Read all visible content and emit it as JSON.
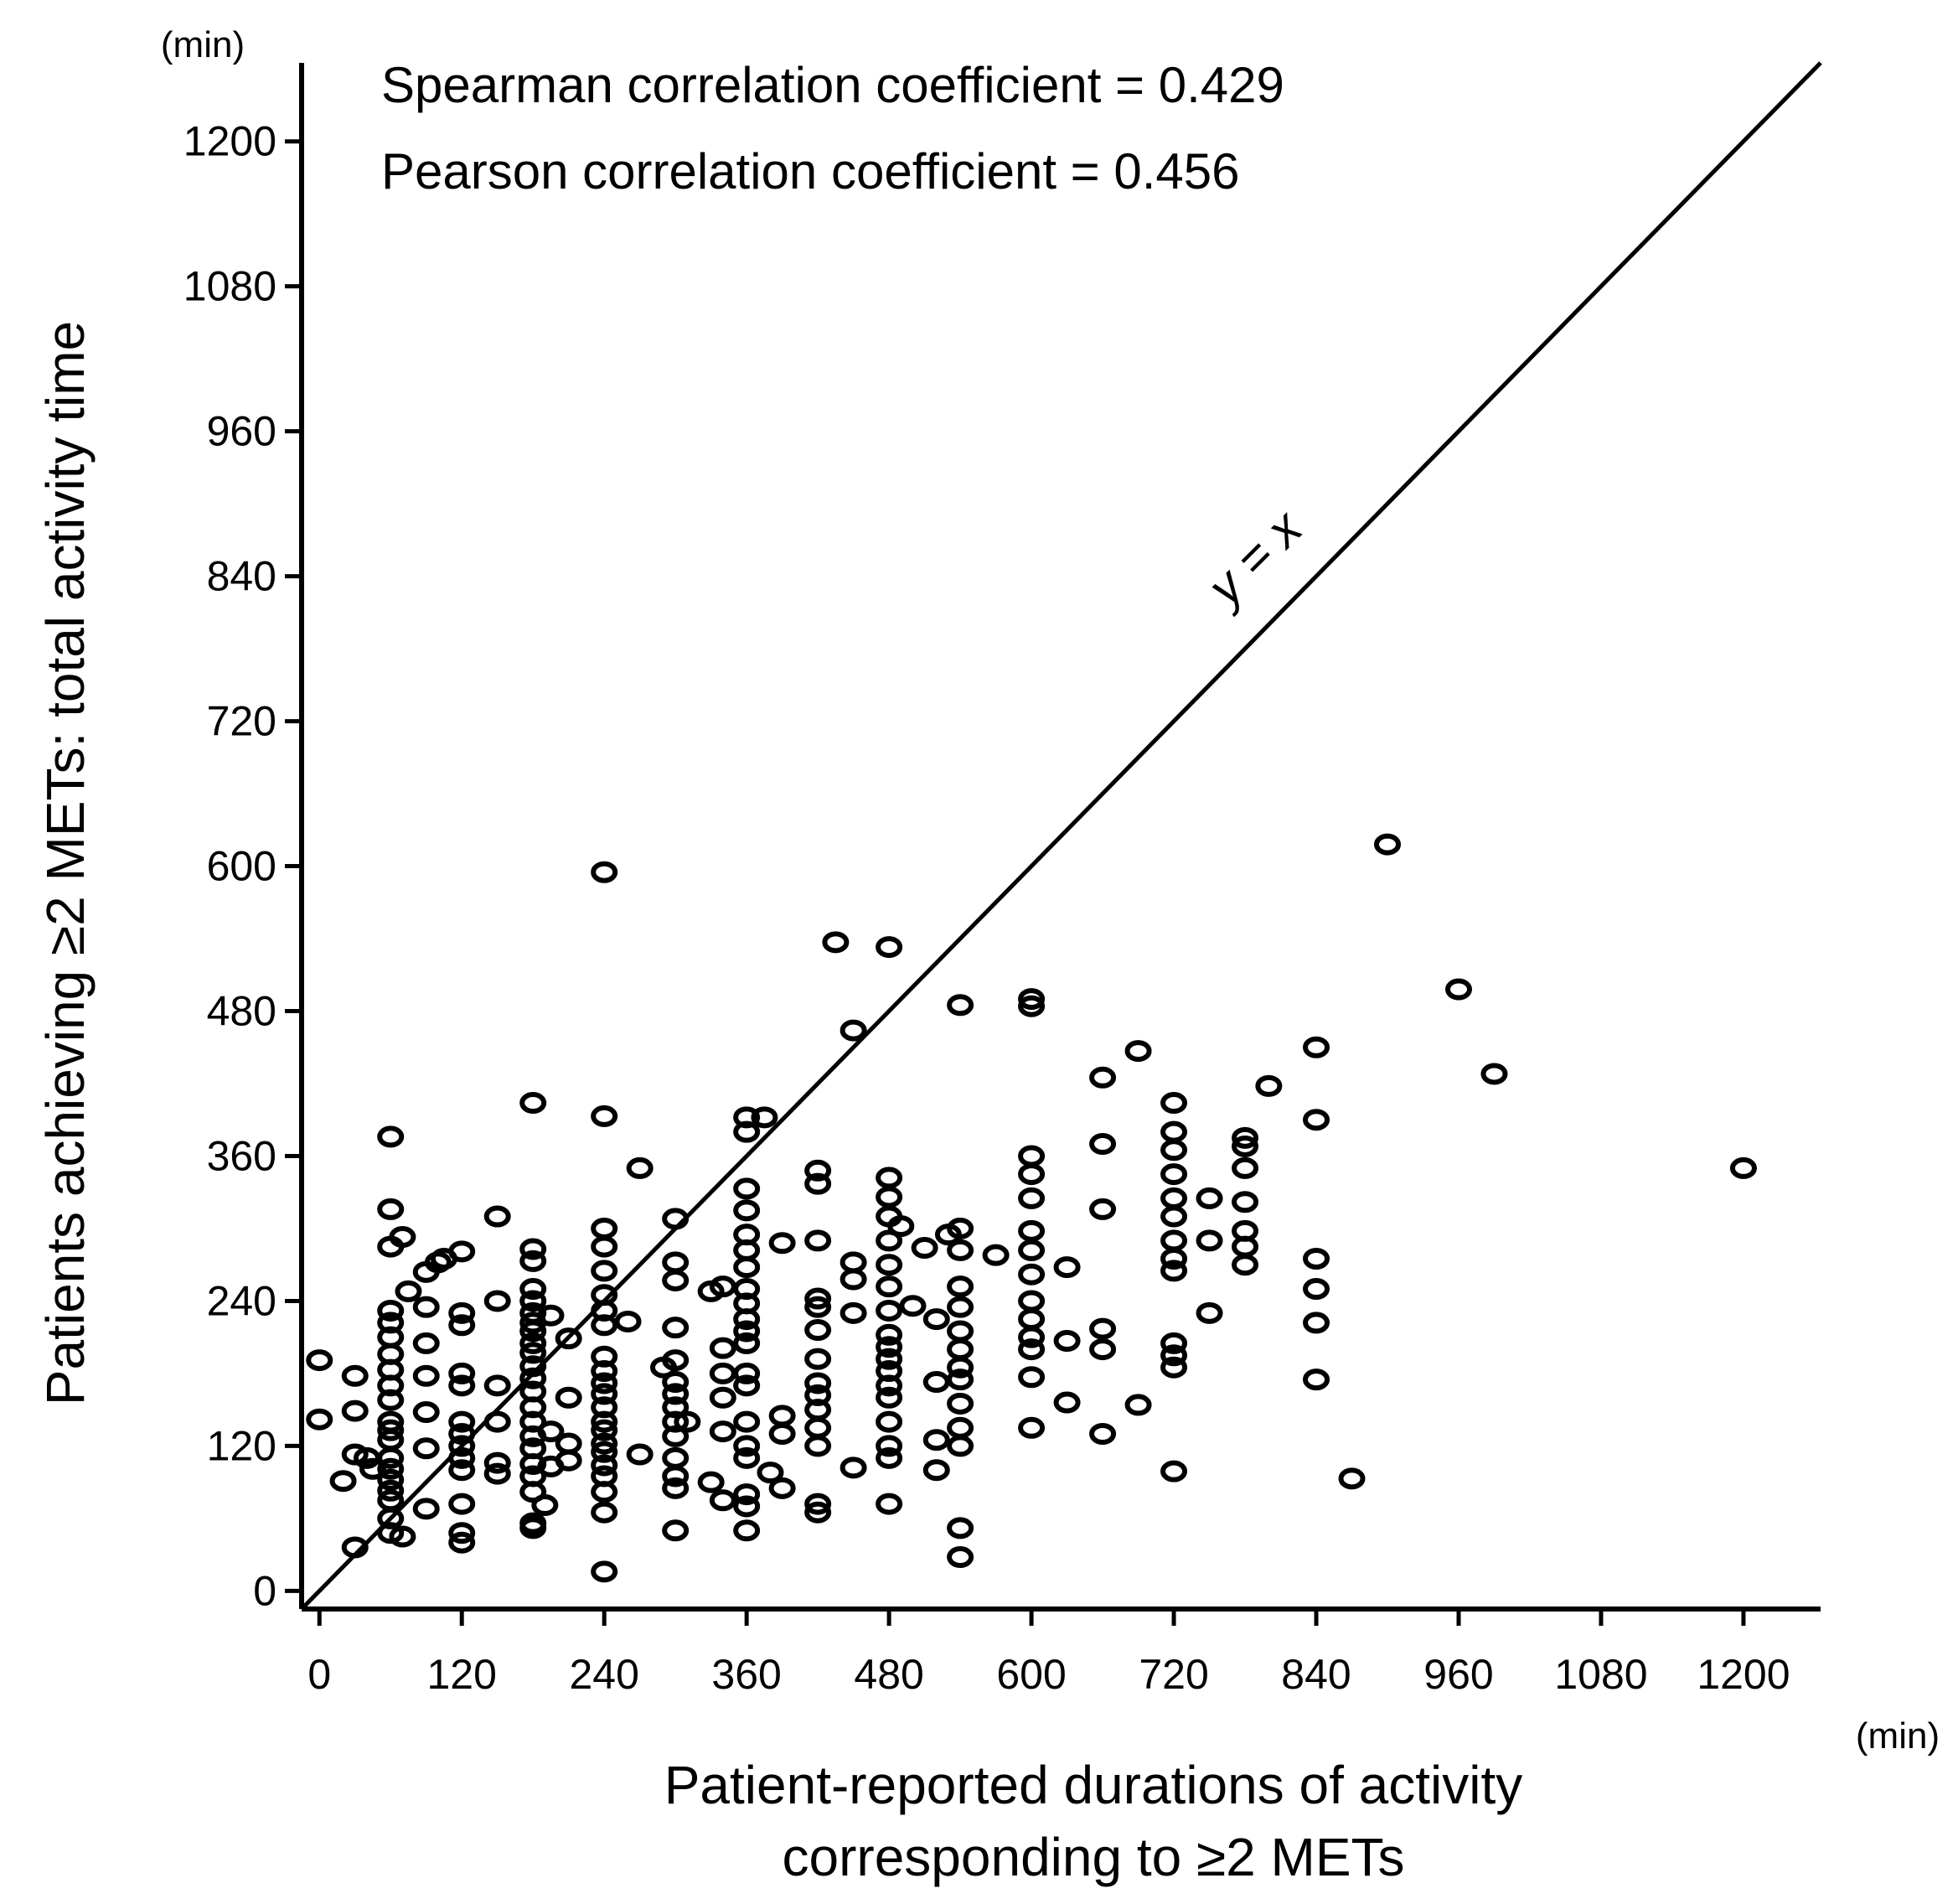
{
  "chart_data": {
    "type": "scatter",
    "xlabel": [
      "Patient-reported  durations of activity",
      "corresponding  to ≥2 METs"
    ],
    "ylabel": "Patients achieving ≥2 METs:  total activity time",
    "x_unit": "(min)",
    "y_unit": "(min)",
    "xlim": [
      -15,
      1265
    ],
    "ylim": [
      -15,
      1265
    ],
    "xticks": [
      0,
      120,
      240,
      360,
      480,
      600,
      720,
      840,
      960,
      1080,
      1200
    ],
    "yticks": [
      0,
      120,
      240,
      360,
      480,
      600,
      720,
      840,
      960,
      1080,
      1200
    ],
    "grid": false,
    "annotations": [
      "Spearman correlation coefficient = 0.429",
      "Pearson correlation coefficient = 0.456"
    ],
    "reference_line": {
      "label": "y = x",
      "slope": 1,
      "intercept": 0
    },
    "series": [
      {
        "points": [
          [
            0,
            191
          ],
          [
            0,
            142
          ],
          [
            20,
            91
          ],
          [
            30,
            36
          ],
          [
            30,
            113
          ],
          [
            30,
            149
          ],
          [
            30,
            178
          ],
          [
            40,
            110
          ],
          [
            45,
            101
          ],
          [
            60,
            48
          ],
          [
            60,
            60
          ],
          [
            60,
            75
          ],
          [
            60,
            83
          ],
          [
            60,
            92
          ],
          [
            60,
            101
          ],
          [
            60,
            110
          ],
          [
            60,
            125
          ],
          [
            60,
            133
          ],
          [
            60,
            140
          ],
          [
            60,
            158
          ],
          [
            60,
            170
          ],
          [
            60,
            183
          ],
          [
            60,
            196
          ],
          [
            60,
            210
          ],
          [
            60,
            222
          ],
          [
            60,
            232
          ],
          [
            60,
            285
          ],
          [
            60,
            316
          ],
          [
            60,
            376
          ],
          [
            70,
            45
          ],
          [
            70,
            293
          ],
          [
            75,
            248
          ],
          [
            90,
            68
          ],
          [
            90,
            118
          ],
          [
            90,
            148
          ],
          [
            90,
            178
          ],
          [
            90,
            205
          ],
          [
            90,
            235
          ],
          [
            90,
            264
          ],
          [
            100,
            272
          ],
          [
            105,
            275
          ],
          [
            120,
            40
          ],
          [
            120,
            48
          ],
          [
            120,
            72
          ],
          [
            120,
            100
          ],
          [
            120,
            110
          ],
          [
            120,
            120
          ],
          [
            120,
            130
          ],
          [
            120,
            140
          ],
          [
            120,
            170
          ],
          [
            120,
            180
          ],
          [
            120,
            220
          ],
          [
            120,
            230
          ],
          [
            120,
            281
          ],
          [
            150,
            97
          ],
          [
            150,
            106
          ],
          [
            150,
            140
          ],
          [
            150,
            170
          ],
          [
            150,
            240
          ],
          [
            150,
            310
          ],
          [
            180,
            52
          ],
          [
            180,
            56
          ],
          [
            180,
            82
          ],
          [
            180,
            95
          ],
          [
            180,
            105
          ],
          [
            180,
            118
          ],
          [
            180,
            128
          ],
          [
            180,
            140
          ],
          [
            180,
            152
          ],
          [
            180,
            165
          ],
          [
            180,
            176
          ],
          [
            180,
            186
          ],
          [
            180,
            197
          ],
          [
            180,
            205
          ],
          [
            180,
            215
          ],
          [
            180,
            222
          ],
          [
            180,
            230
          ],
          [
            180,
            240
          ],
          [
            180,
            250
          ],
          [
            180,
            273
          ],
          [
            180,
            283
          ],
          [
            180,
            404
          ],
          [
            190,
            71
          ],
          [
            195,
            103
          ],
          [
            195,
            132
          ],
          [
            195,
            228
          ],
          [
            210,
            108
          ],
          [
            210,
            122
          ],
          [
            210,
            160
          ],
          [
            210,
            209
          ],
          [
            240,
            16
          ],
          [
            240,
            65
          ],
          [
            240,
            82
          ],
          [
            240,
            95
          ],
          [
            240,
            104
          ],
          [
            240,
            115
          ],
          [
            240,
            122
          ],
          [
            240,
            133
          ],
          [
            240,
            140
          ],
          [
            240,
            152
          ],
          [
            240,
            163
          ],
          [
            240,
            172
          ],
          [
            240,
            182
          ],
          [
            240,
            194
          ],
          [
            240,
            220
          ],
          [
            240,
            232
          ],
          [
            240,
            245
          ],
          [
            240,
            265
          ],
          [
            240,
            285
          ],
          [
            240,
            300
          ],
          [
            240,
            393
          ],
          [
            240,
            595
          ],
          [
            260,
            223
          ],
          [
            270,
            113
          ],
          [
            270,
            350
          ],
          [
            290,
            185
          ],
          [
            300,
            50
          ],
          [
            300,
            85
          ],
          [
            300,
            95
          ],
          [
            300,
            110
          ],
          [
            300,
            128
          ],
          [
            300,
            140
          ],
          [
            300,
            152
          ],
          [
            300,
            163
          ],
          [
            300,
            173
          ],
          [
            300,
            191
          ],
          [
            300,
            218
          ],
          [
            300,
            257
          ],
          [
            300,
            272
          ],
          [
            300,
            308
          ],
          [
            310,
            140
          ],
          [
            330,
            248
          ],
          [
            330,
            90
          ],
          [
            340,
            75
          ],
          [
            340,
            132
          ],
          [
            340,
            160
          ],
          [
            340,
            180
          ],
          [
            340,
            201
          ],
          [
            340,
            252
          ],
          [
            360,
            50
          ],
          [
            360,
            70
          ],
          [
            360,
            80
          ],
          [
            360,
            110
          ],
          [
            360,
            120
          ],
          [
            360,
            140
          ],
          [
            360,
            170
          ],
          [
            360,
            180
          ],
          [
            360,
            205
          ],
          [
            360,
            215
          ],
          [
            360,
            225
          ],
          [
            360,
            238
          ],
          [
            360,
            250
          ],
          [
            360,
            268
          ],
          [
            360,
            282
          ],
          [
            360,
            295
          ],
          [
            360,
            315
          ],
          [
            360,
            333
          ],
          [
            360,
            380
          ],
          [
            360,
            392
          ],
          [
            375,
            392
          ],
          [
            380,
            98
          ],
          [
            390,
            85
          ],
          [
            390,
            130
          ],
          [
            390,
            145
          ],
          [
            390,
            288
          ],
          [
            420,
            65
          ],
          [
            420,
            72
          ],
          [
            420,
            120
          ],
          [
            420,
            135
          ],
          [
            420,
            150
          ],
          [
            420,
            162
          ],
          [
            420,
            172
          ],
          [
            420,
            192
          ],
          [
            420,
            216
          ],
          [
            420,
            235
          ],
          [
            420,
            242
          ],
          [
            420,
            290
          ],
          [
            420,
            337
          ],
          [
            420,
            348
          ],
          [
            435,
            537
          ],
          [
            450,
            102
          ],
          [
            450,
            230
          ],
          [
            450,
            258
          ],
          [
            450,
            272
          ],
          [
            450,
            464
          ],
          [
            480,
            72
          ],
          [
            480,
            110
          ],
          [
            480,
            120
          ],
          [
            480,
            140
          ],
          [
            480,
            160
          ],
          [
            480,
            170
          ],
          [
            480,
            182
          ],
          [
            480,
            192
          ],
          [
            480,
            202
          ],
          [
            480,
            212
          ],
          [
            480,
            232
          ],
          [
            480,
            252
          ],
          [
            480,
            270
          ],
          [
            480,
            290
          ],
          [
            480,
            310
          ],
          [
            480,
            326
          ],
          [
            480,
            342
          ],
          [
            480,
            533
          ],
          [
            490,
            302
          ],
          [
            500,
            236
          ],
          [
            510,
            284
          ],
          [
            520,
            100
          ],
          [
            520,
            125
          ],
          [
            520,
            173
          ],
          [
            520,
            225
          ],
          [
            530,
            295
          ],
          [
            540,
            28
          ],
          [
            540,
            52
          ],
          [
            540,
            120
          ],
          [
            540,
            135
          ],
          [
            540,
            155
          ],
          [
            540,
            175
          ],
          [
            540,
            185
          ],
          [
            540,
            200
          ],
          [
            540,
            215
          ],
          [
            540,
            235
          ],
          [
            540,
            252
          ],
          [
            540,
            282
          ],
          [
            540,
            300
          ],
          [
            540,
            485
          ],
          [
            570,
            278
          ],
          [
            600,
            135
          ],
          [
            600,
            177
          ],
          [
            600,
            200
          ],
          [
            600,
            210
          ],
          [
            600,
            225
          ],
          [
            600,
            240
          ],
          [
            600,
            262
          ],
          [
            600,
            282
          ],
          [
            600,
            298
          ],
          [
            600,
            325
          ],
          [
            600,
            345
          ],
          [
            600,
            360
          ],
          [
            600,
            484
          ],
          [
            600,
            490
          ],
          [
            630,
            156
          ],
          [
            630,
            207
          ],
          [
            630,
            268
          ],
          [
            660,
            130
          ],
          [
            660,
            200
          ],
          [
            660,
            217
          ],
          [
            660,
            316
          ],
          [
            660,
            370
          ],
          [
            660,
            425
          ],
          [
            690,
            154
          ],
          [
            690,
            447
          ],
          [
            720,
            99
          ],
          [
            720,
            185
          ],
          [
            720,
            195
          ],
          [
            720,
            205
          ],
          [
            720,
            265
          ],
          [
            720,
            275
          ],
          [
            720,
            290
          ],
          [
            720,
            310
          ],
          [
            720,
            325
          ],
          [
            720,
            345
          ],
          [
            720,
            365
          ],
          [
            720,
            380
          ],
          [
            720,
            404
          ],
          [
            750,
            230
          ],
          [
            750,
            290
          ],
          [
            750,
            325
          ],
          [
            780,
            270
          ],
          [
            780,
            285
          ],
          [
            780,
            298
          ],
          [
            780,
            322
          ],
          [
            780,
            350
          ],
          [
            780,
            368
          ],
          [
            780,
            375
          ],
          [
            800,
            418
          ],
          [
            840,
            175
          ],
          [
            840,
            222
          ],
          [
            840,
            250
          ],
          [
            840,
            275
          ],
          [
            840,
            390
          ],
          [
            840,
            450
          ],
          [
            870,
            93
          ],
          [
            900,
            618
          ],
          [
            960,
            498
          ],
          [
            990,
            428
          ],
          [
            1200,
            350
          ]
        ]
      }
    ]
  }
}
